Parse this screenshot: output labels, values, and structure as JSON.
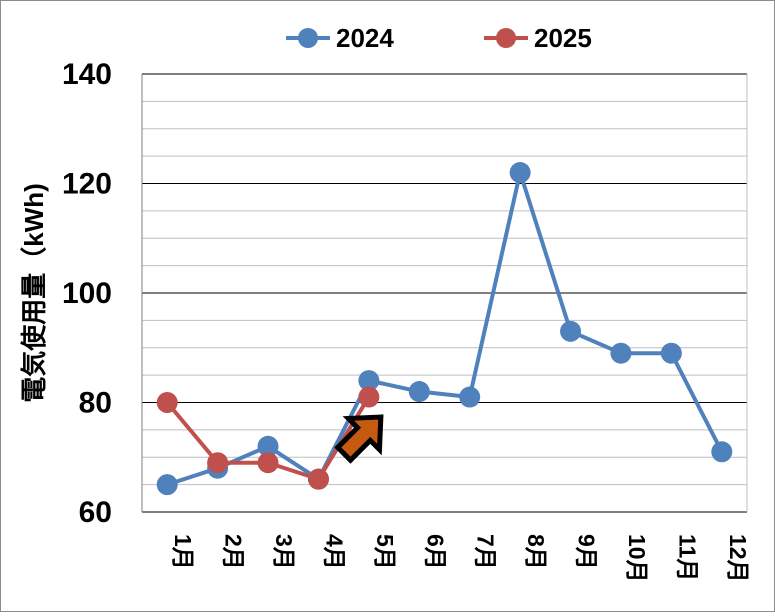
{
  "chart_data": {
    "type": "line",
    "categories": [
      "1月",
      "2月",
      "3月",
      "4月",
      "5月",
      "6月",
      "7月",
      "8月",
      "9月",
      "10月",
      "11月",
      "12月"
    ],
    "series": [
      {
        "name": "2024",
        "color": "#4f81bd",
        "values": [
          65,
          68,
          72,
          66,
          84,
          82,
          81,
          122,
          93,
          89,
          89,
          71
        ]
      },
      {
        "name": "2025",
        "color": "#c0504d",
        "values": [
          80,
          69,
          69,
          66,
          81,
          null,
          null,
          null,
          null,
          null,
          null,
          null
        ]
      }
    ],
    "title": "",
    "xlabel": "",
    "ylabel": "電気使用量（kWh)",
    "ylim": [
      60,
      140
    ],
    "yticks": [
      60,
      80,
      100,
      120,
      140
    ],
    "minor_grid_step": 5,
    "grid": true,
    "legend_position": "top",
    "annotation": {
      "type": "arrow",
      "color": "#c55a11",
      "points_to_category": "5月",
      "points_to_series": "2025"
    }
  }
}
